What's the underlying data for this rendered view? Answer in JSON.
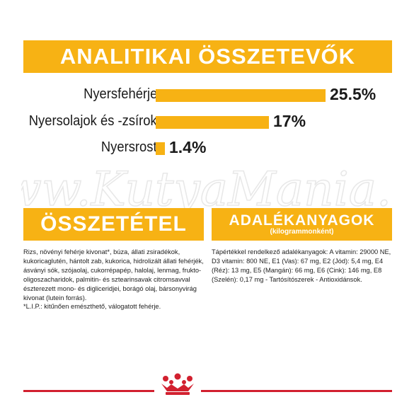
{
  "header": {
    "title": "ANALITIKAI ÖSSZETEVŐK"
  },
  "nutrients": [
    {
      "label": "Nyersfehérje",
      "percent_text": "25.5%",
      "value": 25.5
    },
    {
      "label": "Nyersolajok és -zsírok",
      "percent_text": "17%",
      "value": 17
    },
    {
      "label": "Nyersrost",
      "percent_text": "1.4%",
      "value": 1.4
    }
  ],
  "composition": {
    "title": "ÖSSZETÉTEL",
    "text": "Rizs, növényi fehérje kivonat*, búza, állati zsiradékok, kukoricaglutén, hántolt zab, kukorica, hidrolizált állati fehérjék, ásványi sók, szójaolaj, cukorrépapép, halolaj, lenmag, frukto-oligoszacharidok, palmitin- és sztearinsavak citromsavval észterezett mono- és digliceridjei, borágó olaj, bársonyvirág kivonat (lutein forrás).",
    "footnote": "*L.I.P.: kitűnően emészthető, válogatott fehérje."
  },
  "additives": {
    "title": "ADALÉKANYAGOK",
    "subtitle": "(kilogrammonként)",
    "text": "Tápértékkel rendelkező adalékanyagok: A vitamin: 29000 NE, D3 vitamin: 800 NE, E1 (Vas): 67 mg, E2 (Jód): 5,4 mg, E4 (Réz): 13 mg, E5 (Mangán): 66 mg, E6 (Cink): 146 mg, E8 (Szelén): 0,17 mg - Tartósítószerek - Antioxidánsok."
  },
  "watermark": {
    "text": "www.KutyaMania.hu"
  },
  "brand": {
    "logo_icon": "royal-canin-crown-icon",
    "accent_color": "#f7b214",
    "line_color": "#d2202f"
  }
}
